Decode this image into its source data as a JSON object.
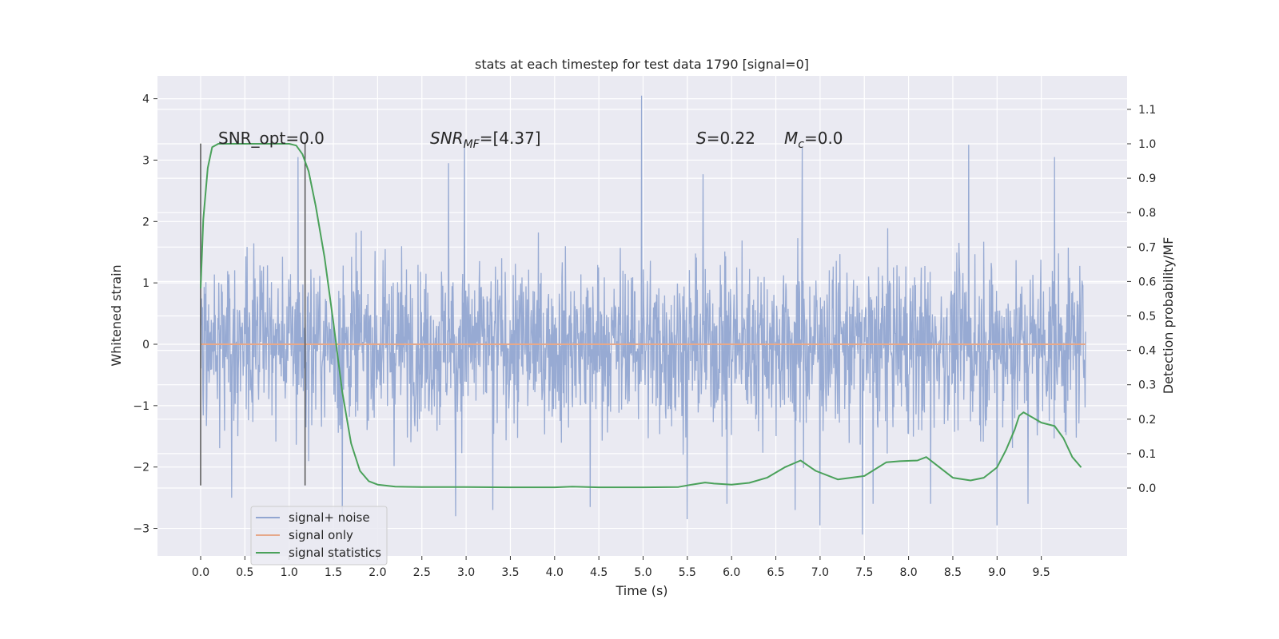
{
  "chart_data": {
    "type": "line",
    "title": "stats at each timestep for test data 1790 [signal=0]",
    "xlabel": "Time (s)",
    "ylabel": "Whitened strain",
    "ylabel_right": "Detection probability/MF",
    "xlim": [
      -0.5,
      10.5
    ],
    "ylim": [
      -3.45,
      4.4
    ],
    "ylim_right": [
      -0.2,
      1.18
    ],
    "x_ticks": [
      "0.0",
      "0.5",
      "1.0",
      "1.5",
      "2.0",
      "2.5",
      "3.0",
      "3.5",
      "4.0",
      "4.5",
      "5.0",
      "5.5",
      "6.0",
      "6.5",
      "7.0",
      "7.5",
      "8.0",
      "8.5",
      "9.0",
      "9.5"
    ],
    "y_ticks": [
      "−3",
      "−2",
      "−1",
      "0",
      "1",
      "2",
      "3",
      "4"
    ],
    "y_ticks_right": [
      "0.0",
      "0.1",
      "0.2",
      "0.3",
      "0.4",
      "0.5",
      "0.6",
      "0.7",
      "0.8",
      "0.9",
      "1.0",
      "1.1"
    ],
    "grid": true,
    "legend_position": "lower-left",
    "vertical_markers": [
      0.0,
      1.18
    ],
    "annotations": {
      "snr_opt": "SNR_opt=0.0",
      "snr_mf_base": "SNR",
      "snr_mf_sub": "MF",
      "snr_mf_value": "=[4.37]",
      "s_sym": "S",
      "s_value": "=0.22",
      "mc_base": "M",
      "mc_sub": "c",
      "mc_value": "=0.0"
    },
    "series": [
      {
        "name": "signal+ noise",
        "axis": "left",
        "color": "#92a6d1",
        "note": "dense whitened noise, roughly within ±1.8 with spikes up to ~4.0",
        "x_range": [
          0.0,
          10.0
        ],
        "spikes": [
          [
            4.98,
            4.05
          ],
          [
            2.98,
            3.3
          ],
          [
            8.68,
            3.25
          ],
          [
            6.8,
            3.2
          ],
          [
            9.65,
            3.05
          ],
          [
            2.8,
            2.95
          ],
          [
            1.1,
            3.05
          ],
          [
            5.68,
            2.77
          ],
          [
            7.0,
            -2.95
          ],
          [
            7.48,
            -3.1
          ],
          [
            9.0,
            -2.95
          ],
          [
            3.3,
            -2.7
          ],
          [
            5.5,
            -2.85
          ],
          [
            0.35,
            -2.5
          ],
          [
            1.6,
            -2.9
          ],
          [
            2.88,
            -2.8
          ],
          [
            4.4,
            -2.65
          ],
          [
            5.95,
            -2.6
          ],
          [
            8.25,
            -2.6
          ],
          [
            9.35,
            -2.6
          ],
          [
            6.72,
            -2.7
          ],
          [
            7.6,
            -2.6
          ]
        ]
      },
      {
        "name": "signal only",
        "axis": "left",
        "color": "#e6a88a",
        "x": [
          0.0,
          10.0
        ],
        "y": [
          0.0,
          0.0
        ]
      },
      {
        "name": "signal statistics",
        "axis": "right",
        "color": "#4aa15a",
        "x": [
          0.0,
          0.03,
          0.08,
          0.13,
          0.2,
          0.35,
          0.6,
          0.9,
          1.0,
          1.08,
          1.15,
          1.22,
          1.3,
          1.4,
          1.5,
          1.6,
          1.7,
          1.8,
          1.9,
          2.0,
          2.2,
          2.5,
          3.0,
          3.5,
          4.0,
          4.2,
          4.5,
          5.0,
          5.4,
          5.55,
          5.7,
          5.8,
          6.0,
          6.2,
          6.4,
          6.6,
          6.78,
          6.95,
          7.2,
          7.5,
          7.75,
          7.9,
          8.1,
          8.2,
          8.35,
          8.5,
          8.7,
          8.85,
          9.0,
          9.1,
          9.2,
          9.25,
          9.3,
          9.4,
          9.5,
          9.65,
          9.75,
          9.85,
          9.95
        ],
        "y": [
          0.58,
          0.78,
          0.93,
          0.99,
          1.0,
          1.0,
          1.0,
          1.0,
          1.0,
          0.995,
          0.97,
          0.92,
          0.82,
          0.67,
          0.48,
          0.28,
          0.13,
          0.05,
          0.02,
          0.01,
          0.004,
          0.003,
          0.003,
          0.002,
          0.002,
          0.004,
          0.002,
          0.002,
          0.003,
          0.01,
          0.016,
          0.013,
          0.01,
          0.015,
          0.03,
          0.06,
          0.08,
          0.05,
          0.025,
          0.035,
          0.075,
          0.078,
          0.08,
          0.09,
          0.06,
          0.03,
          0.022,
          0.03,
          0.06,
          0.11,
          0.17,
          0.21,
          0.22,
          0.205,
          0.19,
          0.18,
          0.145,
          0.09,
          0.06
        ]
      }
    ]
  }
}
